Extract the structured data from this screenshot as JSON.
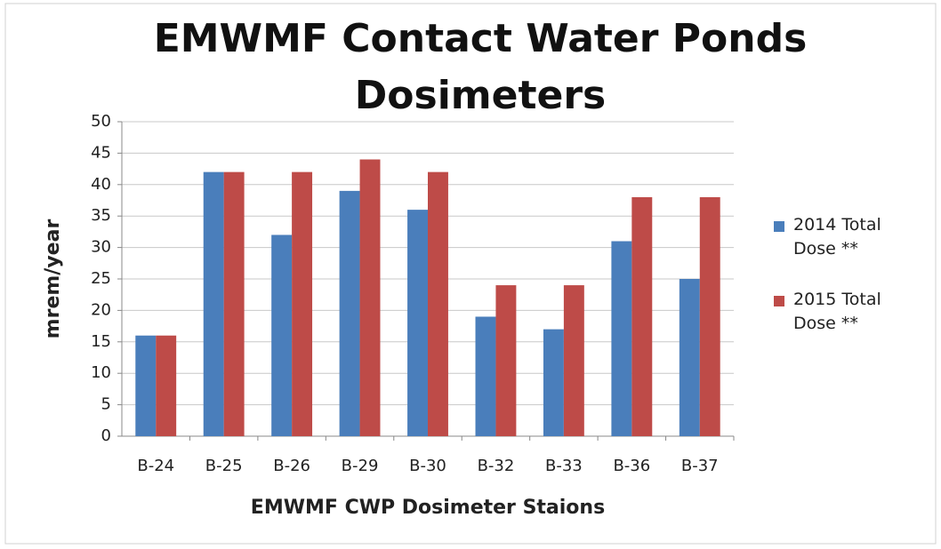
{
  "chart_data": {
    "type": "bar",
    "title": "EMWMF Contact Water Ponds Dosimeters",
    "x_label": "EMWMF CWP Dosimeter Staions",
    "y_label": "mrem/year",
    "categories": [
      "B-24",
      "B-25",
      "B-26",
      "B-29",
      "B-30",
      "B-32",
      "B-33",
      "B-36",
      "B-37"
    ],
    "series": [
      {
        "name": "2014 Total Dose **",
        "color": "#4a7ebb",
        "values": [
          16,
          42,
          32,
          39,
          36,
          19,
          17,
          31,
          25
        ]
      },
      {
        "name": "2015 Total Dose **",
        "color": "#be4b48",
        "values": [
          16,
          42,
          42,
          44,
          42,
          24,
          24,
          38,
          38
        ]
      }
    ],
    "ylim": [
      0,
      50
    ],
    "yticks": [
      0,
      5,
      10,
      15,
      20,
      25,
      30,
      35,
      40,
      45,
      50
    ],
    "grid": true,
    "legend": "right"
  }
}
